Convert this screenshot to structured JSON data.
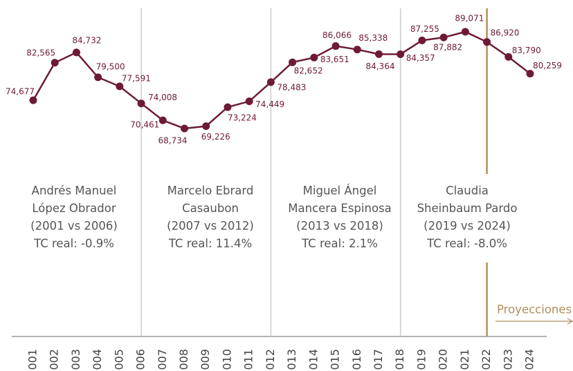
{
  "chart_data": {
    "type": "line",
    "categories": [
      "001",
      "002",
      "003",
      "004",
      "005",
      "006",
      "007",
      "008",
      "009",
      "010",
      "011",
      "012",
      "013",
      "014",
      "015",
      "016",
      "017",
      "018",
      "019",
      "020",
      "021",
      "022",
      "023",
      "024"
    ],
    "series": [
      {
        "color": "#6d1a36",
        "values": [
          74677,
          82565,
          84732,
          79500,
          77591,
          74008,
          70461,
          68734,
          69226,
          73224,
          74449,
          78483,
          82652,
          83651,
          86066,
          85338,
          84364,
          84357,
          87255,
          87882,
          89071,
          86920,
          83790,
          80259
        ],
        "value_labels": [
          "74,677",
          "82,565",
          "84,732",
          "79,500",
          "77,591",
          "74,008",
          "70,461",
          "68,734",
          "69,226",
          "73,224",
          "74,449",
          "78,483",
          "82,652",
          "83,651",
          "86,066",
          "85,338",
          "84,364",
          "84,357",
          "87,255",
          "87,882",
          "89,071",
          "86,920",
          "83,790",
          "80,259"
        ]
      }
    ],
    "annotations": [
      {
        "lines": [
          "Andrés Manuel",
          "López Obrador",
          "(2001 vs 2006)",
          "TC real: -0.9%"
        ],
        "color": "#555555"
      },
      {
        "lines": [
          "Marcelo Ebrard",
          "Casaubon",
          "(2007 vs 2012)",
          "TC real: 11.4%"
        ],
        "color": "#555555"
      },
      {
        "lines": [
          "Miguel Ángel",
          "Mancera Espinosa",
          "(2013 vs 2018)",
          "TC real: 2.1%"
        ],
        "color": "#555555"
      },
      {
        "lines": [
          "Claudia",
          "Sheinbaum Pardo",
          "(2019 vs 2024)",
          "TC real: -8.0%"
        ],
        "color": "#b38e5d"
      }
    ],
    "projection_label": "Proyecciones"
  }
}
